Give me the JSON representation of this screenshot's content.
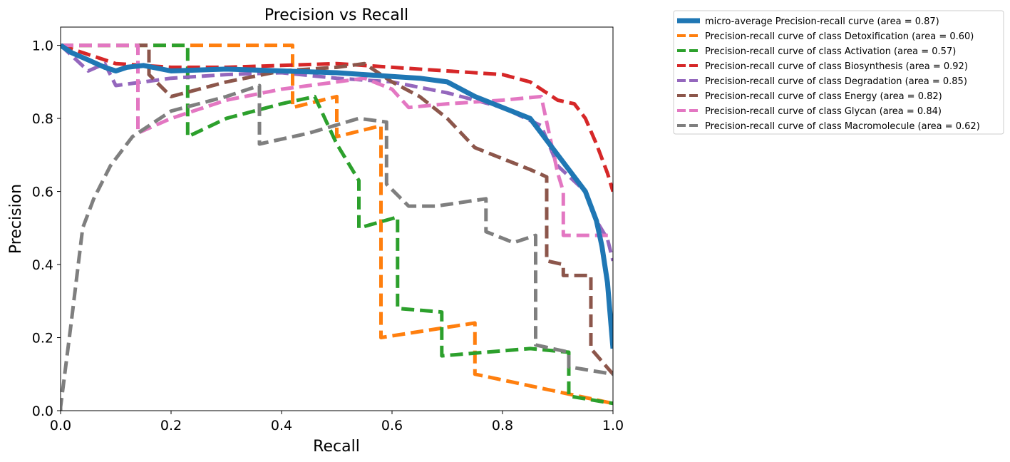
{
  "chart_data": {
    "type": "line",
    "title": "Precision vs Recall",
    "xlabel": "Recall",
    "ylabel": "Precision",
    "xlim": [
      0.0,
      1.0
    ],
    "ylim": [
      0.0,
      1.05
    ],
    "xticks": [
      "0.0",
      "0.2",
      "0.4",
      "0.6",
      "0.8",
      "1.0"
    ],
    "yticks": [
      "0.0",
      "0.2",
      "0.4",
      "0.6",
      "0.8",
      "1.0"
    ],
    "grid": false,
    "legend_position": "outside-top-right",
    "series": [
      {
        "name": "micro-average Precision-recall curve (area = 0.87)",
        "color": "#1f77b4",
        "style": "solid",
        "x": [
          0.0,
          0.02,
          0.05,
          0.08,
          0.1,
          0.12,
          0.15,
          0.2,
          0.3,
          0.4,
          0.5,
          0.55,
          0.6,
          0.65,
          0.7,
          0.75,
          0.8,
          0.85,
          0.88,
          0.9,
          0.92,
          0.95,
          0.97,
          0.98,
          0.99,
          1.0
        ],
        "y": [
          1.0,
          0.98,
          0.96,
          0.94,
          0.93,
          0.94,
          0.945,
          0.93,
          0.935,
          0.93,
          0.925,
          0.92,
          0.915,
          0.91,
          0.9,
          0.86,
          0.83,
          0.8,
          0.74,
          0.7,
          0.66,
          0.6,
          0.52,
          0.45,
          0.35,
          0.17
        ]
      },
      {
        "name": "Precision-recall curve of class Detoxification (area = 0.60)",
        "color": "#ff7f0e",
        "style": "dashed",
        "x": [
          0.0,
          0.42,
          0.42,
          0.5,
          0.5,
          0.58,
          0.58,
          0.75,
          0.75,
          1.0
        ],
        "y": [
          1.0,
          1.0,
          0.83,
          0.86,
          0.75,
          0.78,
          0.2,
          0.24,
          0.1,
          0.02
        ]
      },
      {
        "name": "Precision-recall curve of class Activation (area = 0.57)",
        "color": "#2ca02c",
        "style": "dashed",
        "x": [
          0.0,
          0.23,
          0.23,
          0.3,
          0.4,
          0.46,
          0.5,
          0.54,
          0.54,
          0.61,
          0.61,
          0.69,
          0.69,
          0.85,
          0.92,
          0.92,
          1.0
        ],
        "y": [
          1.0,
          1.0,
          0.75,
          0.8,
          0.84,
          0.86,
          0.73,
          0.63,
          0.5,
          0.53,
          0.28,
          0.27,
          0.15,
          0.17,
          0.16,
          0.04,
          0.02
        ]
      },
      {
        "name": "Precision-recall curve of class Biosynthesis (area = 0.92)",
        "color": "#d62728",
        "style": "dashed",
        "x": [
          0.0,
          0.1,
          0.2,
          0.3,
          0.4,
          0.5,
          0.6,
          0.7,
          0.8,
          0.85,
          0.9,
          0.93,
          0.95,
          0.97,
          0.99,
          1.0
        ],
        "y": [
          1.0,
          0.95,
          0.94,
          0.94,
          0.945,
          0.95,
          0.94,
          0.93,
          0.92,
          0.9,
          0.85,
          0.84,
          0.8,
          0.73,
          0.65,
          0.6
        ]
      },
      {
        "name": "Precision-recall curve of class Degradation (area = 0.85)",
        "color": "#9467bd",
        "style": "dashed",
        "x": [
          0.0,
          0.05,
          0.08,
          0.1,
          0.15,
          0.2,
          0.3,
          0.4,
          0.5,
          0.6,
          0.7,
          0.8,
          0.87,
          0.9,
          0.95,
          0.97,
          0.99,
          1.0
        ],
        "y": [
          1.0,
          0.93,
          0.95,
          0.89,
          0.9,
          0.91,
          0.92,
          0.925,
          0.91,
          0.9,
          0.87,
          0.83,
          0.78,
          0.67,
          0.6,
          0.52,
          0.47,
          0.41
        ]
      },
      {
        "name": "Precision-recall curve of class Energy (area = 0.82)",
        "color": "#8c564b",
        "style": "dashed",
        "x": [
          0.0,
          0.16,
          0.16,
          0.2,
          0.3,
          0.4,
          0.5,
          0.55,
          0.6,
          0.65,
          0.7,
          0.75,
          0.8,
          0.85,
          0.88,
          0.88,
          0.91,
          0.91,
          0.96,
          0.96,
          1.0
        ],
        "y": [
          1.0,
          1.0,
          0.92,
          0.86,
          0.9,
          0.93,
          0.94,
          0.95,
          0.9,
          0.86,
          0.8,
          0.72,
          0.69,
          0.66,
          0.64,
          0.41,
          0.4,
          0.37,
          0.37,
          0.17,
          0.1
        ]
      },
      {
        "name": "Precision-recall curve of class Glycan (area = 0.84)",
        "color": "#e377c2",
        "style": "dashed",
        "x": [
          0.0,
          0.14,
          0.14,
          0.2,
          0.3,
          0.4,
          0.5,
          0.55,
          0.6,
          0.63,
          0.7,
          0.8,
          0.87,
          0.9,
          0.91,
          0.91,
          1.0
        ],
        "y": [
          1.0,
          1.0,
          0.76,
          0.8,
          0.85,
          0.88,
          0.9,
          0.91,
          0.88,
          0.83,
          0.84,
          0.85,
          0.86,
          0.65,
          0.6,
          0.48,
          0.48
        ]
      },
      {
        "name": "Precision-recall curve of class Macromolecule (area = 0.62)",
        "color": "#7f7f7f",
        "style": "dashed",
        "x": [
          0.0,
          0.0,
          0.02,
          0.04,
          0.06,
          0.09,
          0.13,
          0.2,
          0.3,
          0.36,
          0.36,
          0.45,
          0.54,
          0.59,
          0.59,
          0.63,
          0.68,
          0.77,
          0.77,
          0.82,
          0.86,
          0.86,
          0.92,
          0.92,
          1.0
        ],
        "y": [
          0.0,
          0.01,
          0.25,
          0.5,
          0.58,
          0.67,
          0.75,
          0.82,
          0.86,
          0.89,
          0.73,
          0.76,
          0.8,
          0.79,
          0.62,
          0.56,
          0.56,
          0.58,
          0.49,
          0.46,
          0.48,
          0.18,
          0.16,
          0.12,
          0.1
        ]
      }
    ]
  }
}
